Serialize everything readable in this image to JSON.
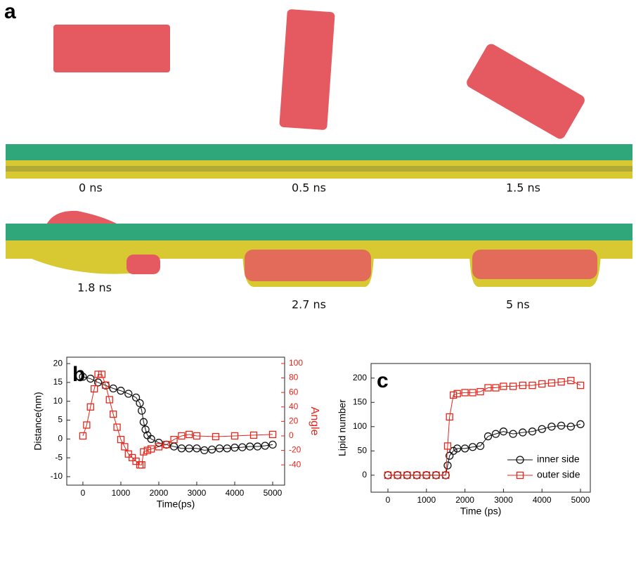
{
  "panel_a": {
    "label": "a",
    "snapshots": [
      "0 ns",
      "0.5 ns",
      "1.5 ns",
      "1.8 ns",
      "2.7 ns",
      "5 ns"
    ]
  },
  "chart_data": [
    {
      "type": "scatter",
      "panel_label": "b",
      "xlabel": "Time(ps)",
      "ylabel": "Distance(nm)",
      "y2label": "Angle",
      "xlim": [
        -425,
        5315
      ],
      "xticks": [
        0,
        1000,
        2000,
        3000,
        4000,
        5000
      ],
      "ylim": [
        -12.25,
        21.7
      ],
      "yticks": [
        -10,
        -5,
        0,
        5,
        10,
        15,
        20
      ],
      "y2lim": [
        -68,
        108.7
      ],
      "y2ticks": [
        -40,
        -20,
        0,
        20,
        40,
        60,
        80,
        100
      ],
      "y2color": "#e8251b",
      "series": [
        {
          "color": "#111111",
          "marker": "circle",
          "x": [
            0,
            200,
            400,
            600,
            800,
            1000,
            1200,
            1400,
            1500,
            1550,
            1600,
            1650,
            1700,
            1800,
            2000,
            2200,
            2400,
            2600,
            2800,
            3000,
            3200,
            3400,
            3600,
            3800,
            4000,
            4200,
            4400,
            4600,
            4800,
            5000
          ],
          "values": [
            16.5,
            16,
            15,
            14.2,
            13.4,
            12.8,
            12,
            11,
            9.5,
            7.5,
            4.5,
            2.5,
            1,
            0,
            -1,
            -1.5,
            -2,
            -2.5,
            -2.5,
            -2.5,
            -3,
            -2.8,
            -2.5,
            -2.5,
            -2.3,
            -2.2,
            -2,
            -2,
            -1.8,
            -1.5
          ]
        },
        {
          "color": "#e8251b",
          "marker": "square",
          "axis": "y2",
          "x": [
            0,
            100,
            200,
            300,
            400,
            500,
            600,
            700,
            800,
            900,
            1000,
            1100,
            1200,
            1300,
            1400,
            1500,
            1550,
            1600,
            1700,
            1800,
            2000,
            2200,
            2400,
            2600,
            2800,
            3000,
            3500,
            4000,
            4500,
            5000
          ],
          "values": [
            0,
            15,
            40,
            65,
            85,
            85,
            70,
            50,
            30,
            12,
            -5,
            -15,
            -25,
            -30,
            -35,
            -40,
            -40,
            -22,
            -20,
            -18,
            -15,
            -12,
            -5,
            0,
            2,
            0,
            -1,
            0,
            1,
            2
          ]
        }
      ]
    },
    {
      "type": "scatter",
      "panel_label": "c",
      "xlabel": "Time (ps)",
      "ylabel": "Lipid number",
      "xlim": [
        -438,
        5255
      ],
      "xticks": [
        0,
        1000,
        2000,
        3000,
        4000,
        5000
      ],
      "ylim": [
        -35,
        230
      ],
      "yticks": [
        0,
        50,
        100,
        150,
        200
      ],
      "legend": "lower right",
      "series": [
        {
          "name": "inner side",
          "color": "#111111",
          "marker": "circle",
          "x": [
            0,
            250,
            500,
            750,
            1000,
            1250,
            1500,
            1550,
            1600,
            1700,
            1800,
            2000,
            2200,
            2400,
            2600,
            2800,
            3000,
            3250,
            3500,
            3750,
            4000,
            4250,
            4500,
            4750,
            5000
          ],
          "values": [
            0,
            0,
            0,
            0,
            0,
            0,
            0,
            20,
            40,
            50,
            55,
            55,
            58,
            60,
            80,
            85,
            90,
            85,
            88,
            90,
            95,
            100,
            102,
            100,
            105
          ]
        },
        {
          "name": "outer side",
          "color": "#e8251b",
          "marker": "square",
          "x": [
            0,
            250,
            500,
            750,
            1000,
            1250,
            1500,
            1550,
            1600,
            1700,
            1800,
            2000,
            2200,
            2400,
            2600,
            2800,
            3000,
            3250,
            3500,
            3750,
            4000,
            4250,
            4500,
            4750,
            5000
          ],
          "values": [
            0,
            0,
            0,
            0,
            0,
            0,
            0,
            60,
            120,
            165,
            168,
            170,
            170,
            172,
            180,
            180,
            183,
            183,
            185,
            185,
            188,
            190,
            192,
            195,
            185
          ]
        }
      ]
    }
  ]
}
